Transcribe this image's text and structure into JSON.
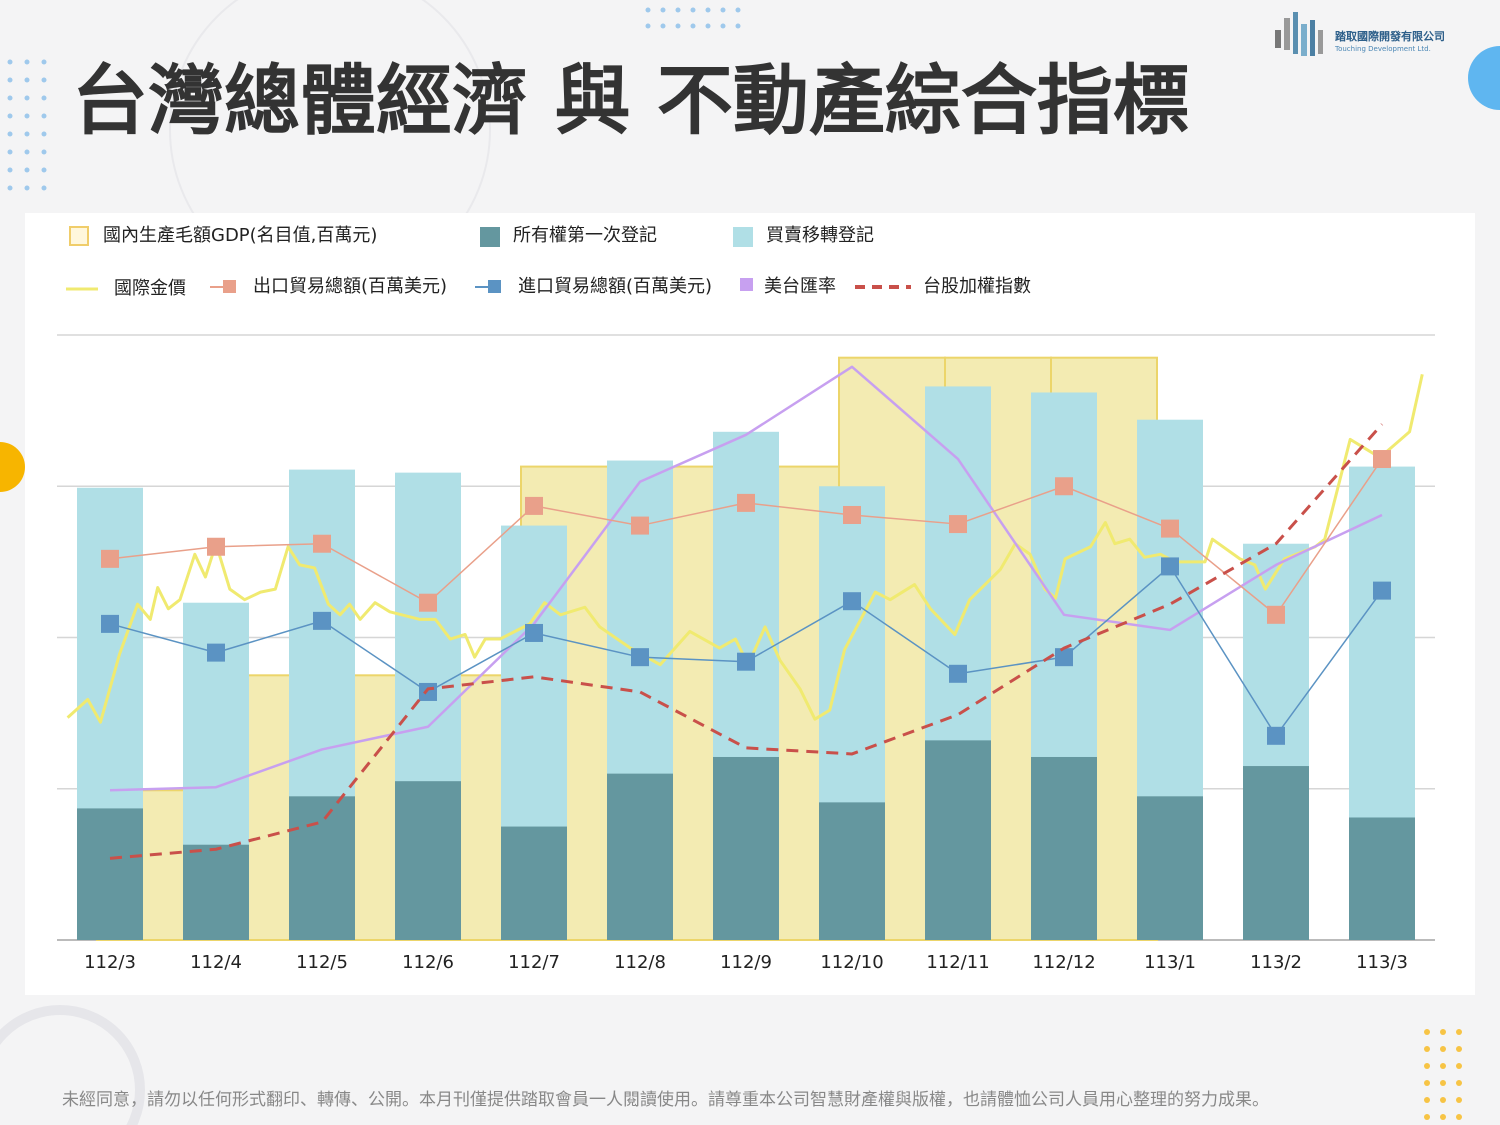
{
  "logo": {
    "name": "踏取國際開發有限公司",
    "english": "Touching Development Ltd."
  },
  "footer": "未經同意，請勿以任何形式翻印、轉傳、公開。本月刊僅提供踏取會員一人閱讀使用。請尊重本公司智慧財產權與版權，也請體恤公司人員用心整理的努力成果。",
  "chart_data": {
    "type": "combo",
    "title": "台灣總體經濟 與 不動產綜合指標",
    "categories": [
      "112/3",
      "112/4",
      "112/5",
      "112/6",
      "112/7",
      "112/8",
      "112/9",
      "112/10",
      "112/11",
      "112/12",
      "113/1",
      "113/2",
      "113/3"
    ],
    "ylim": [
      0,
      4
    ],
    "yticks": [
      0,
      1,
      2,
      3,
      4
    ],
    "grid": true,
    "series": [
      {
        "name": "國內生產毛額GDP(名目值,百萬元)",
        "kind": "step-area",
        "color": "#f3ebb2",
        "values": [
          0.99,
          1.75,
          1.75,
          1.75,
          3.13,
          3.13,
          3.13,
          3.85,
          3.85,
          3.85,
          null,
          null,
          null
        ]
      },
      {
        "name": "所有權第一次登記",
        "kind": "bar",
        "color": "#64979f",
        "values": [
          0.87,
          0.63,
          0.95,
          1.05,
          0.75,
          1.1,
          1.21,
          0.91,
          1.32,
          1.21,
          0.95,
          1.15,
          0.81
        ]
      },
      {
        "name": "買賣移轉登記",
        "kind": "bar",
        "color": "#b0dfe6",
        "values": [
          2.99,
          2.23,
          3.11,
          3.09,
          2.74,
          3.17,
          3.36,
          3.0,
          3.66,
          3.62,
          3.44,
          2.62,
          3.13
        ]
      },
      {
        "name": "國際金價",
        "kind": "line",
        "color": "#f0ea70",
        "x": [
          -0.4,
          -0.21,
          -0.09,
          0.09,
          0.26,
          0.38,
          0.45,
          0.55,
          0.66,
          0.8,
          0.9,
          1.0,
          1.13,
          1.27,
          1.42,
          1.56,
          1.68,
          1.79,
          1.93,
          2.06,
          2.17,
          2.26,
          2.36,
          2.5,
          2.64,
          2.92,
          3.07,
          3.21,
          3.35,
          3.44,
          3.54,
          3.68,
          3.96,
          4.1,
          4.25,
          4.48,
          4.62,
          4.91,
          5.19,
          5.33,
          5.47,
          5.75,
          5.9,
          6.02,
          6.18,
          6.32,
          6.51,
          6.65,
          6.79,
          6.93,
          7.22,
          7.36,
          7.59,
          7.74,
          7.97,
          8.11,
          8.4,
          8.54,
          8.68,
          8.82,
          8.92,
          9.01,
          9.25,
          9.39,
          9.48,
          9.62,
          9.76,
          9.91,
          10.05,
          10.33,
          10.4,
          10.66,
          10.8,
          10.9,
          11.08,
          11.37,
          11.46,
          11.7,
          11.84,
          11.98,
          12.26,
          12.38
        ],
        "values": [
          1.47,
          1.59,
          1.44,
          1.89,
          2.22,
          2.12,
          2.33,
          2.19,
          2.25,
          2.55,
          2.4,
          2.62,
          2.32,
          2.25,
          2.3,
          2.32,
          2.6,
          2.48,
          2.46,
          2.22,
          2.15,
          2.22,
          2.12,
          2.23,
          2.17,
          2.12,
          2.12,
          1.99,
          2.02,
          1.87,
          1.99,
          1.99,
          2.09,
          2.23,
          2.15,
          2.2,
          2.07,
          1.93,
          1.82,
          1.93,
          2.04,
          1.93,
          1.99,
          1.82,
          2.07,
          1.85,
          1.66,
          1.46,
          1.52,
          1.92,
          2.3,
          2.25,
          2.35,
          2.19,
          2.02,
          2.25,
          2.45,
          2.62,
          2.55,
          2.32,
          2.26,
          2.52,
          2.6,
          2.76,
          2.62,
          2.65,
          2.53,
          2.55,
          2.5,
          2.5,
          2.65,
          2.52,
          2.48,
          2.32,
          2.52,
          2.6,
          2.65,
          3.31,
          3.25,
          3.19,
          3.36,
          3.74
        ]
      },
      {
        "name": "出口貿易總額(百萬美元)",
        "kind": "line-marker",
        "color": "#e9a08a",
        "values": [
          2.52,
          2.6,
          2.62,
          2.23,
          2.87,
          2.74,
          2.89,
          2.81,
          2.75,
          3.0,
          2.72,
          2.15,
          3.18
        ]
      },
      {
        "name": "進口貿易總額(百萬美元)",
        "kind": "line-marker",
        "color": "#5b93c3",
        "values": [
          2.09,
          1.9,
          2.11,
          1.64,
          2.03,
          1.87,
          1.84,
          2.24,
          1.76,
          1.87,
          2.47,
          1.35,
          2.31
        ]
      },
      {
        "name": "美台匯率",
        "kind": "line",
        "color": "#c7a0f0",
        "values": [
          0.99,
          1.01,
          1.26,
          1.41,
          2.09,
          3.03,
          3.34,
          3.79,
          3.18,
          2.15,
          2.05,
          2.48,
          2.81
        ]
      },
      {
        "name": "台股加權指數",
        "kind": "dashed-line",
        "color": "#c9504a",
        "values": [
          0.54,
          0.6,
          0.78,
          1.66,
          1.74,
          1.64,
          1.27,
          1.23,
          1.49,
          1.93,
          2.22,
          2.62,
          3.41
        ]
      }
    ]
  }
}
